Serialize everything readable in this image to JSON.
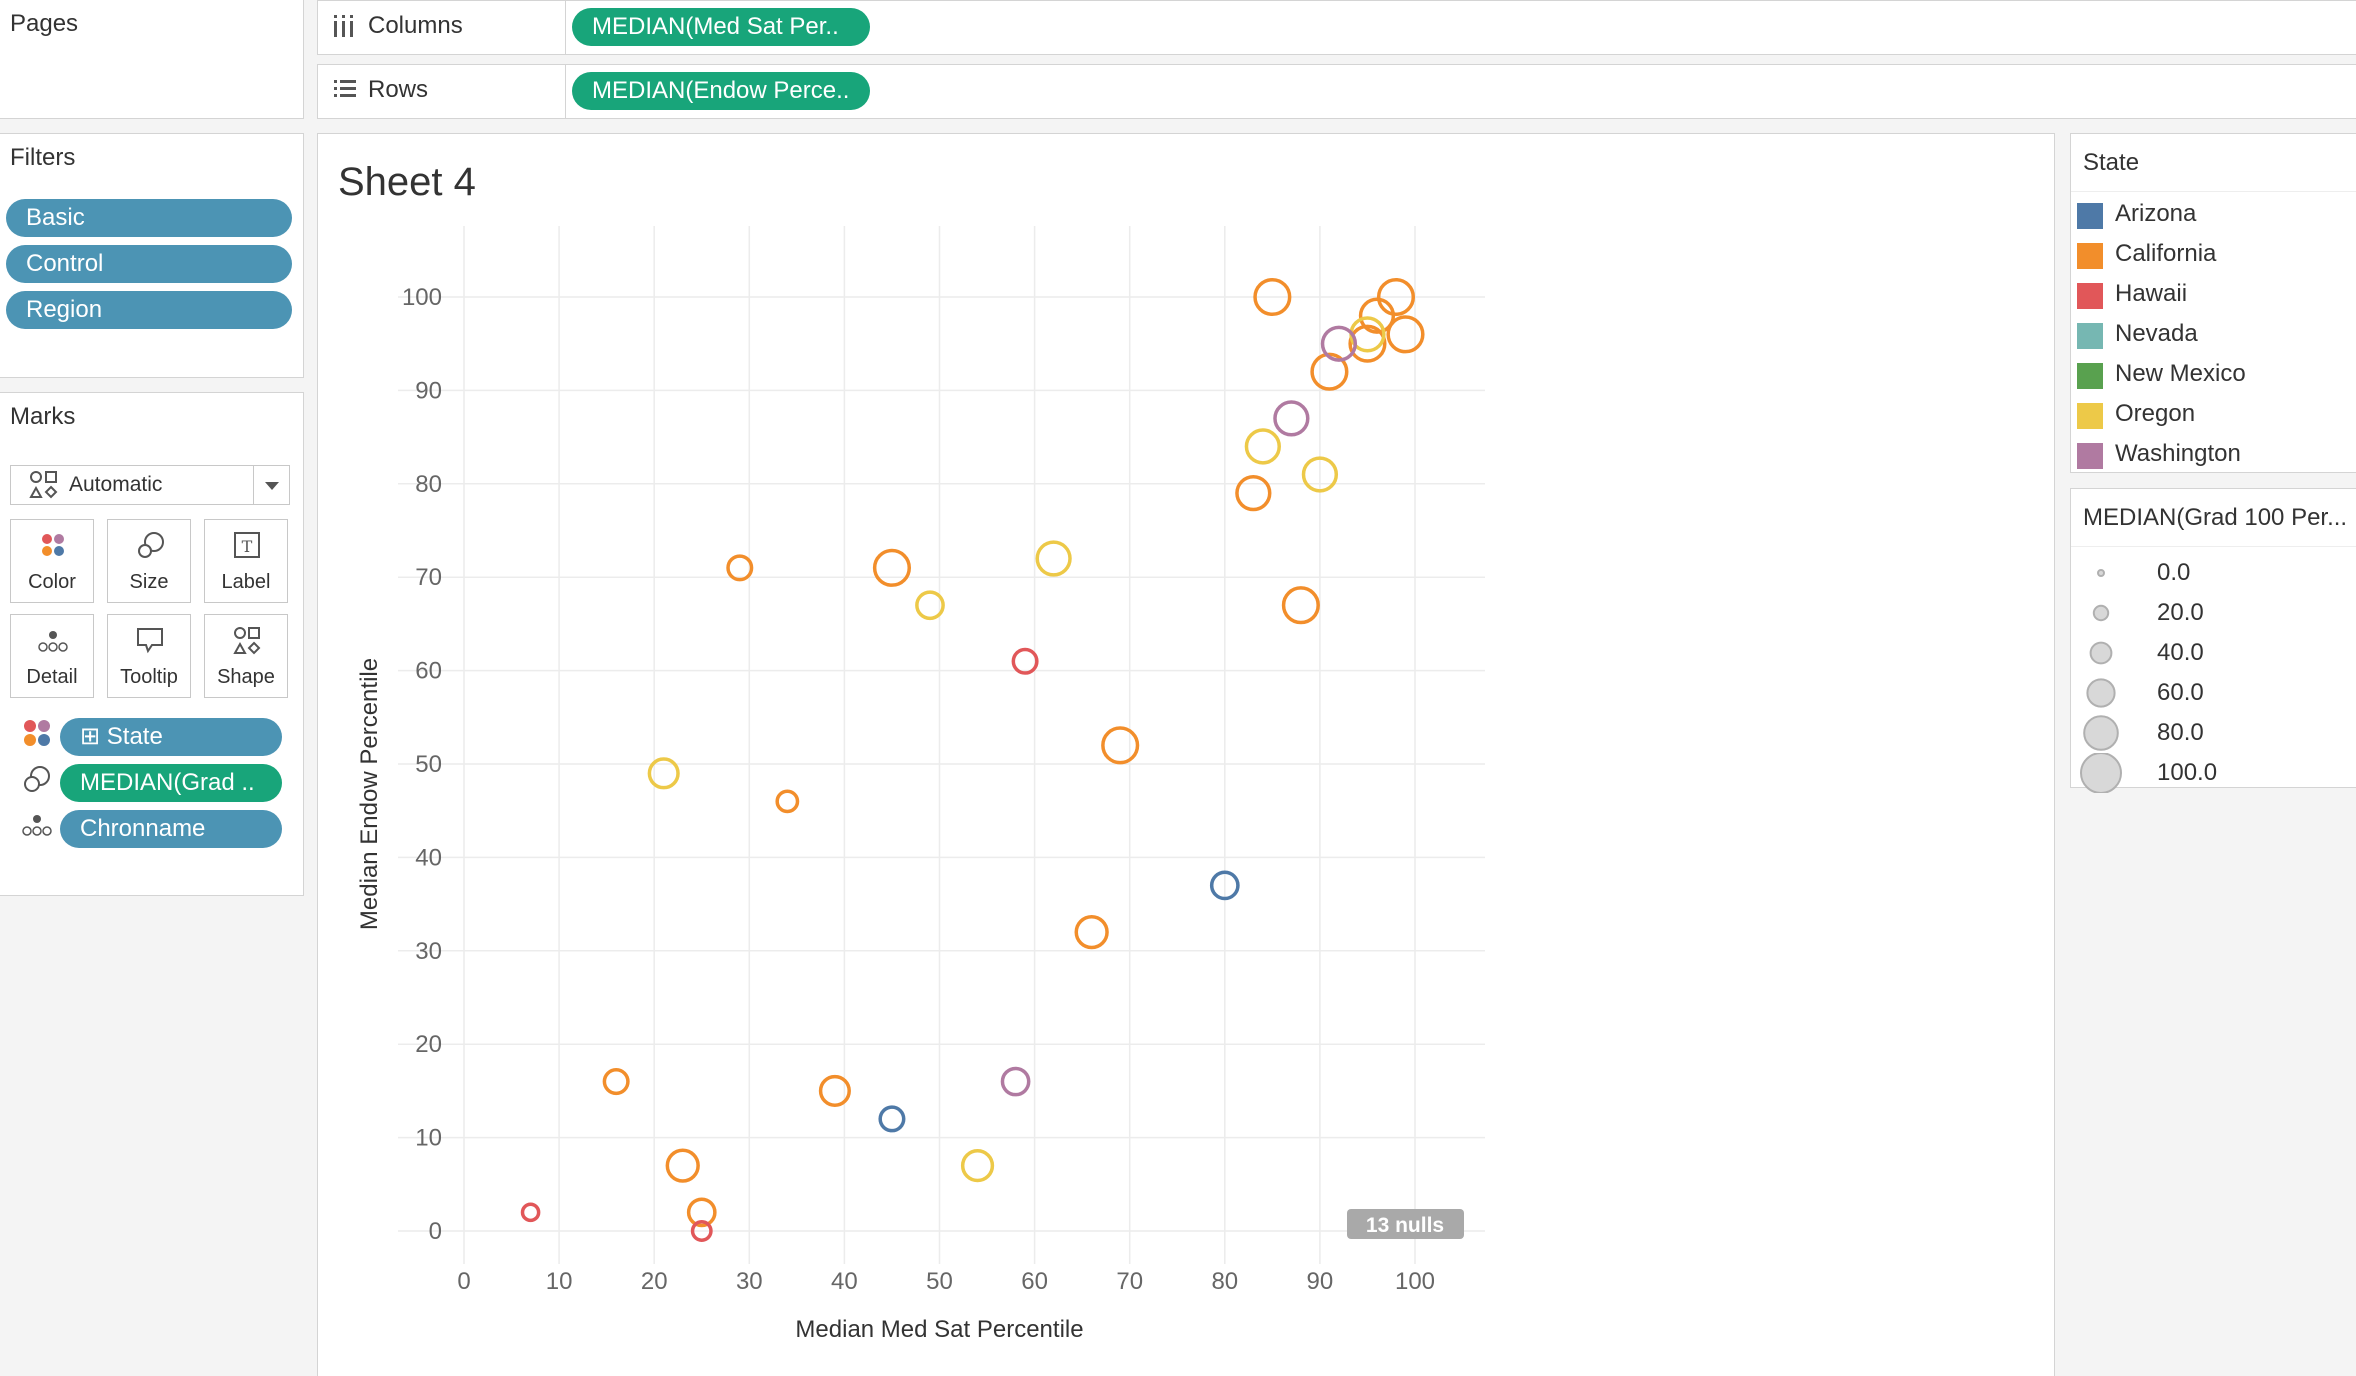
{
  "pages": {
    "title": "Pages"
  },
  "shelves": {
    "columns": {
      "label": "Columns",
      "pill": "MEDIAN(Med Sat Per.."
    },
    "rows": {
      "label": "Rows",
      "pill": "MEDIAN(Endow Perce.."
    }
  },
  "filters": {
    "title": "Filters",
    "items": [
      "Basic",
      "Control",
      "Region"
    ]
  },
  "marks": {
    "title": "Marks",
    "mark_type": "Automatic",
    "cards": [
      "Color",
      "Size",
      "Label",
      "Detail",
      "Tooltip",
      "Shape"
    ],
    "fields": [
      {
        "label": "State",
        "prefix": "⊞",
        "kind": "color",
        "color": "#4c94b4"
      },
      {
        "label": "MEDIAN(Grad ..",
        "prefix": "",
        "kind": "size",
        "color": "#18a57a"
      },
      {
        "label": "Chronname",
        "prefix": "",
        "kind": "detail",
        "color": "#4c94b4"
      }
    ]
  },
  "sheet": {
    "title": "Sheet 4",
    "nulls_badge": "13 nulls"
  },
  "chart_data": {
    "type": "scatter",
    "xlabel": "Median Med Sat Percentile",
    "ylabel": "Median Endow Percentile",
    "xlim": [
      0,
      100
    ],
    "ylim": [
      0,
      100
    ],
    "x_ticks": [
      0,
      10,
      20,
      30,
      40,
      50,
      60,
      70,
      80,
      90,
      100
    ],
    "y_ticks": [
      0,
      10,
      20,
      30,
      40,
      50,
      60,
      70,
      80,
      90,
      100
    ],
    "grid": true,
    "size_field": "MEDIAN(Grad 100 Percentile)",
    "series": [
      {
        "name": "Arizona",
        "color": "#4e79a7",
        "points": [
          [
            80,
            37,
            40
          ],
          [
            45,
            12,
            30
          ]
        ]
      },
      {
        "name": "California",
        "color": "#f28e2b",
        "points": [
          [
            85,
            100,
            80
          ],
          [
            98,
            100,
            80
          ],
          [
            96,
            98,
            70
          ],
          [
            99,
            96,
            80
          ],
          [
            95,
            95,
            80
          ],
          [
            91,
            92,
            80
          ],
          [
            83,
            79,
            70
          ],
          [
            88,
            67,
            80
          ],
          [
            69,
            52,
            80
          ],
          [
            45,
            71,
            80
          ],
          [
            29,
            71,
            30
          ],
          [
            34,
            46,
            20
          ],
          [
            66,
            32,
            60
          ],
          [
            39,
            15,
            50
          ],
          [
            16,
            16,
            30
          ],
          [
            23,
            7,
            60
          ],
          [
            25,
            2,
            40
          ]
        ]
      },
      {
        "name": "Hawaii",
        "color": "#e15759",
        "points": [
          [
            59,
            61,
            30
          ],
          [
            7,
            2,
            10
          ],
          [
            25,
            0,
            15
          ]
        ]
      },
      {
        "name": "Nevada",
        "color": "#76b7b2",
        "points": []
      },
      {
        "name": "New Mexico",
        "color": "#59a14f",
        "points": []
      },
      {
        "name": "Oregon",
        "color": "#edc948",
        "points": [
          [
            95,
            96,
            70
          ],
          [
            84,
            84,
            70
          ],
          [
            90,
            81,
            70
          ],
          [
            62,
            72,
            70
          ],
          [
            49,
            67,
            40
          ],
          [
            21,
            49,
            50
          ],
          [
            54,
            7,
            55
          ]
        ]
      },
      {
        "name": "Washington",
        "color": "#b07aa1",
        "points": [
          [
            92,
            95,
            70
          ],
          [
            87,
            87,
            70
          ],
          [
            58,
            16,
            40
          ]
        ]
      }
    ]
  },
  "state_legend": {
    "title": "State"
  },
  "size_legend": {
    "title": "MEDIAN(Grad 100 Per...",
    "entries": [
      {
        "label": "0.0",
        "value": 0
      },
      {
        "label": "20.0",
        "value": 20
      },
      {
        "label": "40.0",
        "value": 40
      },
      {
        "label": "60.0",
        "value": 60
      },
      {
        "label": "80.0",
        "value": 80
      },
      {
        "label": "100.0",
        "value": 100
      }
    ]
  }
}
